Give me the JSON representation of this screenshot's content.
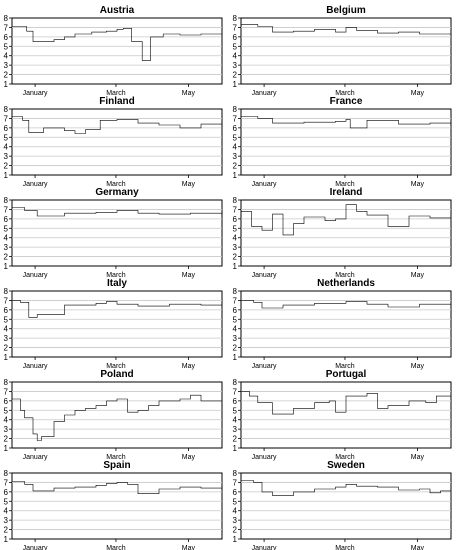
{
  "chart_data": [
    {
      "type": "line",
      "title": "Austria",
      "ylim": [
        1,
        8
      ],
      "yticks": [
        1,
        2,
        3,
        4,
        5,
        6,
        7,
        8
      ],
      "xticks": [
        "January",
        "March",
        "May"
      ],
      "grid": "horizontal",
      "x": [
        0,
        0.07,
        0.1,
        0.2,
        0.25,
        0.3,
        0.38,
        0.45,
        0.5,
        0.53,
        0.57,
        0.62,
        0.66,
        0.72,
        0.8,
        0.9,
        1
      ],
      "values": [
        7.1,
        6.6,
        5.5,
        5.7,
        6.0,
        6.3,
        6.5,
        6.6,
        6.8,
        6.9,
        5.5,
        3.5,
        6.0,
        6.3,
        6.2,
        6.3,
        5.8
      ]
    },
    {
      "type": "line",
      "title": "Belgium",
      "ylim": [
        1,
        8
      ],
      "yticks": [
        1,
        2,
        3,
        4,
        5,
        6,
        7,
        8
      ],
      "xticks": [
        "January",
        "March",
        "May"
      ],
      "grid": "horizontal",
      "x": [
        0,
        0.08,
        0.15,
        0.25,
        0.35,
        0.45,
        0.5,
        0.55,
        0.65,
        0.75,
        0.85,
        1
      ],
      "values": [
        7.3,
        7.1,
        6.5,
        6.6,
        6.8,
        6.5,
        7.0,
        6.7,
        6.4,
        6.5,
        6.3,
        6.4
      ]
    },
    {
      "type": "line",
      "title": "Finland",
      "ylim": [
        1,
        8
      ],
      "yticks": [
        1,
        2,
        3,
        4,
        5,
        6,
        7,
        8
      ],
      "xticks": [
        "January",
        "March",
        "May"
      ],
      "grid": "horizontal",
      "x": [
        0,
        0.05,
        0.08,
        0.15,
        0.25,
        0.3,
        0.35,
        0.42,
        0.5,
        0.6,
        0.7,
        0.8,
        0.9,
        1
      ],
      "values": [
        7.2,
        6.8,
        5.5,
        6.0,
        5.7,
        5.4,
        5.8,
        6.8,
        6.9,
        6.5,
        6.3,
        6.0,
        6.4,
        5.7
      ]
    },
    {
      "type": "line",
      "title": "France",
      "ylim": [
        1,
        8
      ],
      "yticks": [
        1,
        2,
        3,
        4,
        5,
        6,
        7,
        8
      ],
      "xticks": [
        "January",
        "March",
        "May"
      ],
      "grid": "horizontal",
      "x": [
        0,
        0.08,
        0.15,
        0.3,
        0.45,
        0.5,
        0.52,
        0.6,
        0.75,
        0.9,
        1
      ],
      "values": [
        7.2,
        7.0,
        6.5,
        6.6,
        6.7,
        6.9,
        6.0,
        6.8,
        6.4,
        6.5,
        6.3
      ]
    },
    {
      "type": "line",
      "title": "Germany",
      "ylim": [
        1,
        8
      ],
      "yticks": [
        1,
        2,
        3,
        4,
        5,
        6,
        7,
        8
      ],
      "xticks": [
        "January",
        "March",
        "May"
      ],
      "grid": "horizontal",
      "x": [
        0,
        0.06,
        0.12,
        0.25,
        0.4,
        0.5,
        0.6,
        0.7,
        0.85,
        1
      ],
      "values": [
        7.2,
        6.9,
        6.3,
        6.6,
        6.7,
        6.9,
        6.6,
        6.5,
        6.6,
        6.2
      ]
    },
    {
      "type": "line",
      "title": "Ireland",
      "ylim": [
        1,
        8
      ],
      "yticks": [
        1,
        2,
        3,
        4,
        5,
        6,
        7,
        8
      ],
      "xticks": [
        "January",
        "March",
        "May"
      ],
      "grid": "horizontal",
      "x": [
        0,
        0.05,
        0.1,
        0.15,
        0.2,
        0.25,
        0.3,
        0.4,
        0.45,
        0.5,
        0.55,
        0.6,
        0.7,
        0.8,
        0.9,
        1
      ],
      "values": [
        6.8,
        5.2,
        4.8,
        6.5,
        4.3,
        5.5,
        6.2,
        5.8,
        6.0,
        7.5,
        6.8,
        6.4,
        5.2,
        6.3,
        6.1,
        5.8
      ]
    },
    {
      "type": "line",
      "title": "Italy",
      "ylim": [
        1,
        8
      ],
      "yticks": [
        1,
        2,
        3,
        4,
        5,
        6,
        7,
        8
      ],
      "xticks": [
        "January",
        "March",
        "May"
      ],
      "grid": "horizontal",
      "x": [
        0,
        0.04,
        0.08,
        0.12,
        0.25,
        0.4,
        0.45,
        0.5,
        0.6,
        0.75,
        0.9,
        1
      ],
      "values": [
        7.0,
        6.8,
        5.2,
        5.5,
        6.5,
        6.7,
        6.9,
        6.6,
        6.4,
        6.6,
        6.5,
        6.3
      ]
    },
    {
      "type": "line",
      "title": "Netherlands",
      "ylim": [
        1,
        8
      ],
      "yticks": [
        1,
        2,
        3,
        4,
        5,
        6,
        7,
        8
      ],
      "xticks": [
        "January",
        "March",
        "May"
      ],
      "grid": "horizontal",
      "x": [
        0,
        0.06,
        0.1,
        0.2,
        0.35,
        0.5,
        0.6,
        0.7,
        0.85,
        1
      ],
      "values": [
        7.0,
        6.8,
        6.2,
        6.5,
        6.7,
        6.9,
        6.6,
        6.3,
        6.6,
        6.2
      ]
    },
    {
      "type": "line",
      "title": "Poland",
      "ylim": [
        1,
        8
      ],
      "yticks": [
        1,
        2,
        3,
        4,
        5,
        6,
        7,
        8
      ],
      "xticks": [
        "January",
        "March",
        "May"
      ],
      "grid": "horizontal",
      "x": [
        0,
        0.04,
        0.06,
        0.1,
        0.12,
        0.14,
        0.2,
        0.25,
        0.3,
        0.35,
        0.4,
        0.45,
        0.5,
        0.55,
        0.6,
        0.65,
        0.7,
        0.8,
        0.85,
        0.9,
        1
      ],
      "values": [
        6.2,
        5.0,
        4.2,
        2.5,
        1.8,
        2.2,
        3.8,
        4.5,
        5.0,
        5.2,
        5.5,
        6.0,
        6.2,
        4.8,
        5.0,
        5.5,
        6.0,
        6.2,
        6.6,
        6.0,
        5.0
      ]
    },
    {
      "type": "line",
      "title": "Portugal",
      "ylim": [
        1,
        8
      ],
      "yticks": [
        1,
        2,
        3,
        4,
        5,
        6,
        7,
        8
      ],
      "xticks": [
        "January",
        "March",
        "May"
      ],
      "grid": "horizontal",
      "x": [
        0,
        0.04,
        0.08,
        0.15,
        0.25,
        0.35,
        0.42,
        0.45,
        0.5,
        0.6,
        0.65,
        0.7,
        0.8,
        0.88,
        0.93,
        1
      ],
      "values": [
        7.0,
        6.5,
        5.8,
        4.6,
        5.2,
        5.8,
        6.0,
        4.8,
        6.5,
        6.8,
        5.2,
        5.5,
        6.0,
        5.8,
        6.5,
        6.2
      ]
    },
    {
      "type": "line",
      "title": "Spain",
      "ylim": [
        1,
        8
      ],
      "yticks": [
        1,
        2,
        3,
        4,
        5,
        6,
        7,
        8
      ],
      "xticks": [
        "January",
        "March",
        "May"
      ],
      "grid": "horizontal",
      "x": [
        0,
        0.06,
        0.1,
        0.2,
        0.3,
        0.4,
        0.45,
        0.5,
        0.55,
        0.6,
        0.7,
        0.8,
        0.9,
        1
      ],
      "values": [
        7.1,
        6.8,
        6.1,
        6.4,
        6.5,
        6.7,
        6.9,
        7.0,
        6.8,
        5.8,
        6.3,
        6.5,
        6.4,
        6.2
      ]
    },
    {
      "type": "line",
      "title": "Sweden",
      "ylim": [
        1,
        8
      ],
      "yticks": [
        1,
        2,
        3,
        4,
        5,
        6,
        7,
        8
      ],
      "xticks": [
        "January",
        "March",
        "May"
      ],
      "grid": "horizontal",
      "x": [
        0,
        0.06,
        0.1,
        0.15,
        0.25,
        0.35,
        0.45,
        0.5,
        0.55,
        0.65,
        0.75,
        0.85,
        0.9,
        0.95,
        1
      ],
      "values": [
        7.2,
        7.0,
        6.0,
        5.6,
        6.0,
        6.3,
        6.5,
        6.8,
        6.6,
        6.5,
        6.2,
        6.3,
        5.9,
        6.1,
        5.4
      ]
    }
  ]
}
